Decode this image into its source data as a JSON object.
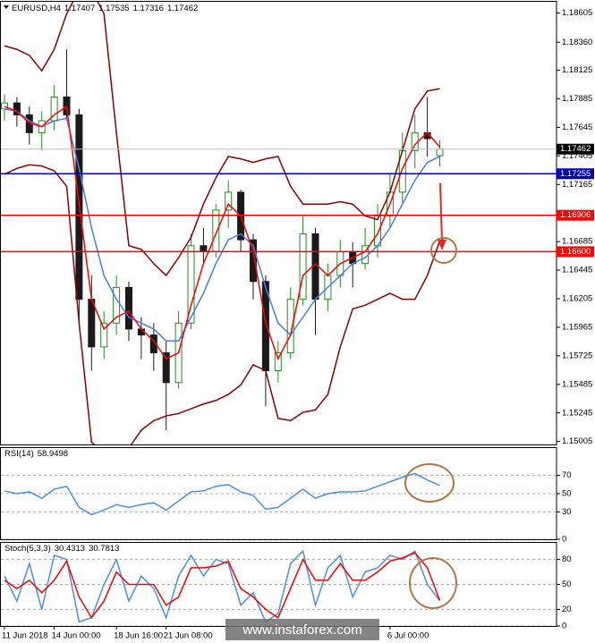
{
  "chart_data": [
    {
      "type": "candlestick",
      "title": "EURUSD,H4",
      "x": [
        "11 Jun 2018",
        null,
        null,
        null,
        "14 Jun 00:00",
        null,
        null,
        null,
        null,
        "18 Jun 16:00",
        null,
        null,
        null,
        "21 Jun 08:00",
        null,
        null,
        null,
        null,
        null,
        null,
        null,
        null,
        null,
        null,
        null,
        null,
        null,
        null,
        null,
        null,
        null,
        "6 Jul 00:00",
        null,
        null,
        null,
        null
      ],
      "open": [
        1.178,
        1.1785,
        1.1775,
        1.176,
        1.177,
        1.179,
        1.1775,
        1.162,
        1.158,
        1.16,
        1.163,
        1.1595,
        1.159,
        1.1575,
        1.155,
        1.16,
        1.1665,
        1.166,
        1.1695,
        1.171,
        1.167,
        1.1635,
        1.156,
        1.1575,
        1.162,
        1.1675,
        1.162,
        1.164,
        1.166,
        1.165,
        1.1665,
        1.169,
        1.171,
        1.1745,
        1.176,
        1.17407
      ],
      "high": [
        1.1792,
        1.179,
        1.1782,
        1.1778,
        1.18,
        1.183,
        1.178,
        1.164,
        1.161,
        1.164,
        1.1635,
        1.1605,
        1.16,
        1.1585,
        1.161,
        1.1675,
        1.168,
        1.17,
        1.172,
        1.1712,
        1.1675,
        1.164,
        1.1585,
        1.163,
        1.169,
        1.168,
        1.165,
        1.167,
        1.1668,
        1.168,
        1.17,
        1.1725,
        1.176,
        1.1775,
        1.179,
        1.17535
      ],
      "low": [
        1.177,
        1.1765,
        1.175,
        1.1745,
        1.1762,
        1.177,
        1.16,
        1.156,
        1.157,
        1.159,
        1.1585,
        1.157,
        1.156,
        1.151,
        1.1545,
        1.1595,
        1.165,
        1.1655,
        1.168,
        1.166,
        1.162,
        1.153,
        1.155,
        1.157,
        1.1615,
        1.159,
        1.161,
        1.163,
        1.163,
        1.1645,
        1.1655,
        1.168,
        1.17,
        1.173,
        1.174,
        1.17316
      ],
      "close": [
        1.1785,
        1.1775,
        1.176,
        1.177,
        1.179,
        1.1775,
        1.162,
        1.158,
        1.16,
        1.163,
        1.1595,
        1.159,
        1.1575,
        1.155,
        1.16,
        1.1665,
        1.166,
        1.1695,
        1.171,
        1.167,
        1.1635,
        1.156,
        1.1575,
        1.162,
        1.1675,
        1.162,
        1.164,
        1.166,
        1.165,
        1.1665,
        1.169,
        1.171,
        1.1745,
        1.176,
        1.1755,
        1.17462
      ],
      "up_color": "#1f8f1f",
      "down_color": "#1a1a1a",
      "overlays": [
        {
          "color": "#8b0000",
          "values": [
            1.1833,
            1.183,
            1.1825,
            1.1812,
            1.183,
            1.186,
            1.188,
            1.188,
            1.186,
            1.176,
            1.1665,
            1.1662,
            1.165,
            1.164,
            1.1655,
            1.1672,
            1.17,
            1.1722,
            1.174,
            1.1738,
            1.1735,
            1.1738,
            1.174,
            1.1715,
            1.17,
            1.17,
            1.17,
            1.1702,
            1.17,
            1.169,
            1.1687,
            1.171,
            1.1745,
            1.178,
            1.1795,
            1.1797
          ]
        },
        {
          "color": "#8b0000",
          "values": [
            1.1725,
            1.173,
            1.1733,
            1.1732,
            1.1728,
            1.1715,
            1.16,
            1.15,
            1.149,
            1.1485,
            1.1495,
            1.151,
            1.1518,
            1.1522,
            1.1524,
            1.1528,
            1.1532,
            1.1535,
            1.154,
            1.1548,
            1.1565,
            1.156,
            1.152,
            1.1518,
            1.1525,
            1.1527,
            1.154,
            1.158,
            1.1612,
            1.1615,
            1.162,
            1.1625,
            1.162,
            1.162,
            1.164,
            1.1669
          ]
        },
        {
          "color": "#4a7fe0",
          "values": [
            1.178,
            1.1778,
            1.177,
            1.1765,
            1.177,
            1.1772,
            1.173,
            1.168,
            1.164,
            1.162,
            1.1605,
            1.16,
            1.1595,
            1.1585,
            1.1585,
            1.1605,
            1.1625,
            1.165,
            1.167,
            1.1675,
            1.1665,
            1.163,
            1.16,
            1.159,
            1.1605,
            1.162,
            1.163,
            1.164,
            1.165,
            1.1655,
            1.1665,
            1.168,
            1.17,
            1.172,
            1.1735,
            1.174
          ]
        },
        {
          "color": "#ff0000",
          "values": [
            1.1782,
            1.1778,
            1.1768,
            1.1765,
            1.1775,
            1.1782,
            1.17,
            1.162,
            1.1595,
            1.1605,
            1.161,
            1.1595,
            1.1585,
            1.157,
            1.1575,
            1.1615,
            1.165,
            1.1675,
            1.17,
            1.169,
            1.166,
            1.16,
            1.157,
            1.159,
            1.164,
            1.165,
            1.164,
            1.165,
            1.1655,
            1.166,
            1.1675,
            1.17,
            1.173,
            1.175,
            1.176,
            1.1748
          ]
        }
      ],
      "levels": [
        {
          "value": 1.17255,
          "color": "#0000b0"
        },
        {
          "value": 1.16906,
          "color": "#ff0000"
        },
        {
          "value": 1.166,
          "label": "1.16600",
          "color": "#ff0000"
        }
      ],
      "ylim": [
        1.1498,
        1.187
      ],
      "yticks": [
        1.18605,
        {
          "value": 1.1836,
          "label": "1.18360"
        },
        1.18125,
        1.17885,
        1.17645,
        1.17405,
        1.17165,
        1.16685,
        1.16445,
        1.16205,
        1.15965,
        1.15725,
        1.15485,
        1.15245,
        1.15005
      ],
      "grid": false
    },
    {
      "type": "line",
      "title": "RSI(14)",
      "series": [
        {
          "color": "#4a90e2",
          "values": [
            53,
            50,
            52,
            45,
            55,
            58,
            35,
            27,
            32,
            38,
            35,
            38,
            40,
            32,
            42,
            52,
            53,
            58,
            60,
            52,
            48,
            33,
            35,
            45,
            55,
            45,
            50,
            52,
            52,
            53,
            58,
            63,
            68,
            72,
            65,
            58.9498
          ]
        }
      ],
      "ylim": [
        0,
        100
      ],
      "yticks": [
        70,
        50,
        30,
        0
      ],
      "grid": true
    },
    {
      "type": "line",
      "title": "Stoch(5,3,3)",
      "series": [
        {
          "color": "#4a90e2",
          "values": [
            60,
            30,
            75,
            20,
            85,
            80,
            5,
            10,
            50,
            80,
            30,
            60,
            45,
            10,
            60,
            85,
            60,
            80,
            75,
            25,
            40,
            5,
            15,
            75,
            90,
            25,
            70,
            85,
            35,
            65,
            70,
            85,
            80,
            90,
            50,
            30.4313
          ]
        },
        {
          "color": "#ff0000",
          "values": [
            55,
            45,
            55,
            40,
            55,
            78,
            35,
            10,
            30,
            65,
            50,
            50,
            50,
            25,
            35,
            70,
            70,
            72,
            78,
            45,
            35,
            20,
            10,
            45,
            80,
            55,
            55,
            75,
            55,
            55,
            65,
            78,
            82,
            88,
            70,
            30.7813
          ]
        }
      ],
      "ylim": [
        0,
        100
      ],
      "yticks": [
        80,
        50,
        20,
        0
      ],
      "grid": true
    }
  ],
  "watermark": "www.instaforex.com"
}
